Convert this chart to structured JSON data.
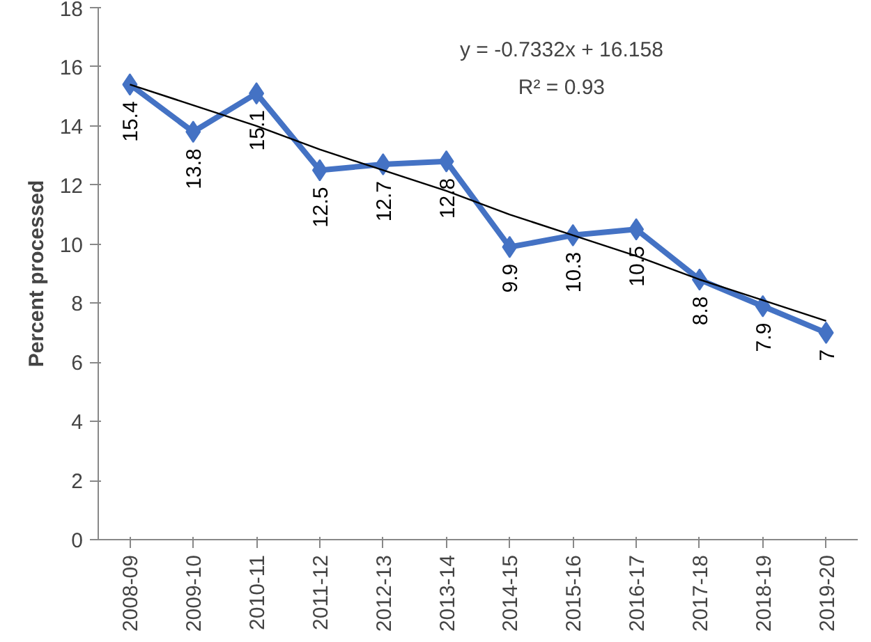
{
  "chart_data": {
    "type": "line",
    "ylabel": "Percent processed",
    "categories": [
      "2008-09",
      "2009-10",
      "2010-11",
      "2011-12",
      "2012-13",
      "2013-14",
      "2014-15",
      "2015-16",
      "2016-17",
      "2017-18",
      "2018-19",
      "2019-20"
    ],
    "series": [
      {
        "color": "#4472c4",
        "values": [
          15.4,
          13.8,
          15.1,
          12.5,
          12.7,
          12.8,
          9.9,
          10.3,
          10.5,
          8.8,
          7.9,
          7
        ],
        "marker": "diamond",
        "data_labels": true
      },
      {
        "type": "line",
        "color": "#000000",
        "values": [
          15.4,
          14.7,
          14.0,
          13.2,
          12.5,
          11.8,
          11.0,
          10.3,
          9.6,
          8.8,
          8.1,
          7.4
        ],
        "marker": "none"
      }
    ],
    "annotations": [
      "y = -0.7332x + 16.158",
      "R² = 0.93"
    ],
    "ylim": [
      0,
      18
    ],
    "yticks": [
      0,
      2,
      4,
      6,
      8,
      10,
      12,
      14,
      16,
      18
    ],
    "grid": false
  }
}
